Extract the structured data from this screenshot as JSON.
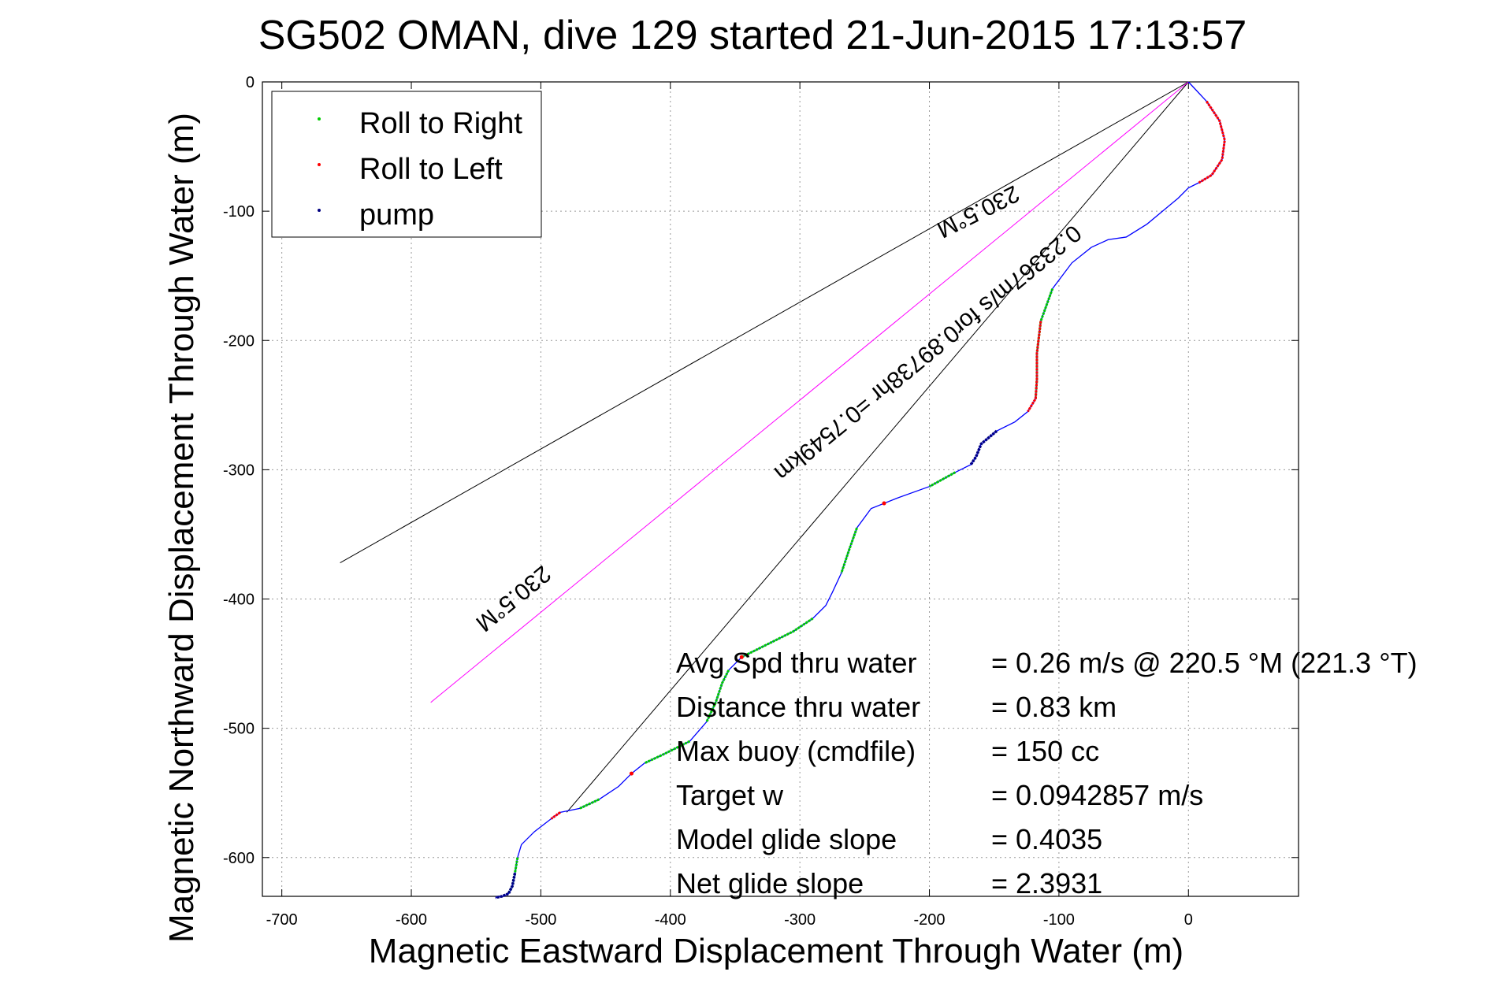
{
  "chart_data": {
    "type": "line",
    "title": "SG502 OMAN, dive 129 started 21-Jun-2015 17:13:57",
    "xlabel": "Magnetic Eastward Displacement Through Water (m)",
    "ylabel": "Magnetic Northward Displacement Through Water (m)",
    "xlim": [
      -715,
      85
    ],
    "ylim": [
      -630,
      0
    ],
    "xticks": [
      -700,
      -600,
      -500,
      -400,
      -300,
      -200,
      -100,
      0
    ],
    "yticks": [
      0,
      -100,
      -200,
      -300,
      -400,
      -500,
      -600
    ],
    "xtick_labels": [
      "-700",
      "-600",
      "-500",
      "-400",
      "-300",
      "-200",
      "-100",
      "0"
    ],
    "ytick_labels": [
      "0",
      "-100",
      "-200",
      "-300",
      "-400",
      "-500",
      "-600"
    ],
    "grid": true,
    "legend": {
      "placement": "top-left",
      "entries": [
        {
          "label": "Roll to Right",
          "color": "#00cc00"
        },
        {
          "label": "Roll to Left",
          "color": "#ff0000"
        },
        {
          "label": "pump",
          "color": "#000080"
        }
      ]
    },
    "track": {
      "color": "#0000ff",
      "x": [
        0,
        14,
        24,
        28,
        26,
        18,
        8,
        0,
        -8,
        -20,
        -32,
        -48,
        -62,
        -75,
        -90,
        -105,
        -114,
        -117,
        -117,
        -118,
        -124,
        -134,
        -148,
        -160,
        -164,
        -168,
        -180,
        -200,
        -225,
        -245,
        -256,
        -262,
        -268,
        -275,
        -280,
        -290,
        -305,
        -325,
        -345,
        -355,
        -360,
        -365,
        -372,
        -385,
        -405,
        -420,
        -430,
        -440,
        -455,
        -470,
        -485,
        -492,
        -505,
        -515,
        -518,
        -520,
        -522,
        -525,
        -530,
        -535
      ],
      "y": [
        0,
        -15,
        -30,
        -45,
        -60,
        -72,
        -78,
        -82,
        -90,
        -100,
        -110,
        -120,
        -122,
        -128,
        -140,
        -160,
        -185,
        -210,
        -230,
        -245,
        -255,
        -263,
        -270,
        -280,
        -290,
        -296,
        -302,
        -313,
        -322,
        -330,
        -345,
        -362,
        -380,
        -395,
        -405,
        -415,
        -425,
        -435,
        -445,
        -455,
        -465,
        -480,
        -495,
        -510,
        -520,
        -527,
        -535,
        -545,
        -555,
        -562,
        -565,
        -570,
        -580,
        -590,
        -600,
        -612,
        -622,
        -628,
        -630,
        -631
      ]
    },
    "roll_right_ranges": [
      [
        -118,
        -104
      ],
      [
        -210,
        -178
      ],
      [
        -270,
        -255
      ],
      [
        -345,
        -285
      ],
      [
        -372,
        -352
      ],
      [
        -428,
        -375
      ],
      [
        -478,
        -445
      ],
      [
        -526,
        -518
      ]
    ],
    "roll_left_ranges": [
      [
        8,
        28
      ],
      [
        -130,
        -114
      ],
      [
        -242,
        -228
      ],
      [
        -350,
        -340
      ],
      [
        -435,
        -425
      ],
      [
        -495,
        -485
      ]
    ],
    "pump_ranges": [
      [
        -178,
        -148
      ],
      [
        -535,
        -520
      ]
    ],
    "wedge_upper": {
      "x": [
        0,
        -655
      ],
      "y": [
        0,
        -372
      ]
    },
    "wedge_lower": {
      "x": [
        0,
        -480
      ],
      "y": [
        0,
        -565
      ]
    },
    "heading_line": {
      "color": "#ff00ff",
      "x": [
        0,
        -585
      ],
      "y": [
        0,
        -480
      ]
    },
    "heading_labels": [
      "230.5°M",
      "0.23367m/s for0.89738hr =0.7549km",
      "230.5°M"
    ],
    "annotations": [
      {
        "label": "Avg Spd thru water",
        "value": "=  0.26 m/s @ 220.5 °M (221.3 °T)"
      },
      {
        "label": "Distance thru water",
        "value": "=  0.83 km"
      },
      {
        "label": "Max buoy (cmdfile)",
        "value": "= 150 cc"
      },
      {
        "label": "Target w",
        "value": "= 0.0942857 m/s"
      },
      {
        "label": "Model glide slope",
        "value": "= 0.4035"
      },
      {
        "label": "Net glide slope",
        "value": "= 2.3931"
      }
    ]
  }
}
